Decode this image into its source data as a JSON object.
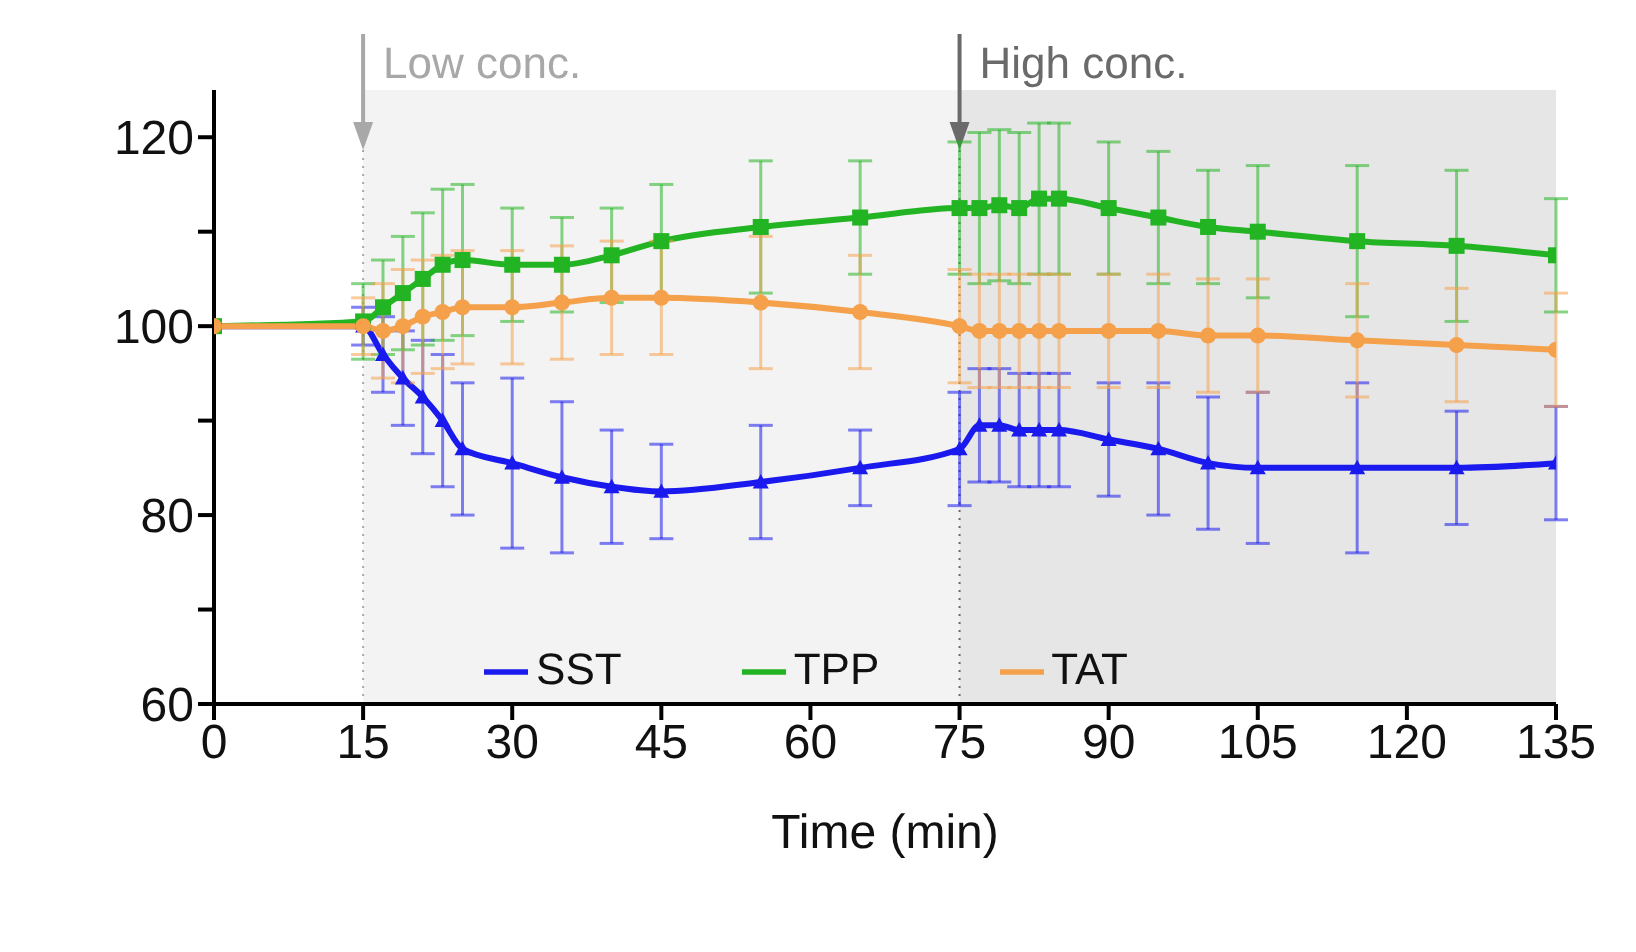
{
  "chart_data": {
    "type": "line",
    "xlabel": "Time (min)",
    "x": [
      0,
      15,
      17,
      19,
      21,
      23,
      25,
      30,
      35,
      40,
      45,
      55,
      65,
      75,
      77,
      79,
      81,
      83,
      85,
      90,
      95,
      100,
      105,
      115,
      125,
      135
    ],
    "series": [
      {
        "name": "SST",
        "color": "#1a1aee",
        "marker": "triangle",
        "values": [
          100,
          100,
          97,
          94.5,
          92.5,
          90,
          87,
          85.5,
          84,
          83,
          82.5,
          83.5,
          85,
          87,
          89.5,
          89.5,
          89,
          89,
          89,
          88,
          87,
          85.5,
          85,
          85,
          85,
          85.5
        ],
        "errors": [
          null,
          2,
          4,
          5,
          6,
          7,
          7,
          9,
          8,
          6,
          5,
          6,
          4,
          6,
          6,
          6,
          6,
          6,
          6,
          6,
          7,
          7,
          8,
          9,
          6,
          6
        ]
      },
      {
        "name": "TPP",
        "color": "#22b422",
        "marker": "square",
        "values": [
          100,
          100.5,
          102,
          103.5,
          105,
          106.5,
          107,
          106.5,
          106.5,
          107.5,
          109,
          110.5,
          111.5,
          112.5,
          112.5,
          112.8,
          112.5,
          113.5,
          113.5,
          112.5,
          111.5,
          110.5,
          110,
          109,
          108.5,
          107.5
        ],
        "errors": [
          null,
          4,
          5,
          6,
          7,
          8,
          8,
          6,
          5,
          5,
          6,
          7,
          6,
          7,
          8,
          8,
          8,
          8,
          8,
          7,
          7,
          6,
          7,
          8,
          8,
          6
        ]
      },
      {
        "name": "TAT",
        "color": "#f5a04a",
        "marker": "circle",
        "values": [
          100,
          100,
          99.5,
          100,
          101,
          101.5,
          102,
          102,
          102.5,
          103,
          103,
          102.5,
          101.5,
          100,
          99.5,
          99.5,
          99.5,
          99.5,
          99.5,
          99.5,
          99.5,
          99,
          99,
          98.5,
          98,
          97.5
        ],
        "errors": [
          null,
          3,
          5,
          6,
          6,
          6,
          6,
          6,
          6,
          6,
          6,
          7,
          6,
          6,
          6,
          6,
          6,
          6,
          6,
          6,
          6,
          6,
          6,
          6,
          6,
          6
        ]
      }
    ],
    "xlim": [
      0,
      135
    ],
    "xticks": [
      0,
      15,
      30,
      45,
      60,
      75,
      90,
      105,
      120,
      135
    ],
    "ylim": [
      60,
      125
    ],
    "yticks": [
      60,
      {
        "value": 70,
        "label": null
      },
      80,
      {
        "value": 90,
        "label": null
      },
      100,
      {
        "value": 110,
        "label": null
      },
      120
    ],
    "bands": [
      {
        "axis": "x",
        "from": 15,
        "to": 75,
        "color": "#f3f3f3"
      },
      {
        "axis": "x",
        "from": 75,
        "to": 135,
        "color": "#e6e6e6"
      }
    ],
    "ref_lines": [
      {
        "axis": "x",
        "value": 15,
        "label": "Low conc.",
        "color": "#a8a8a8",
        "line_style": "dotted"
      },
      {
        "axis": "x",
        "value": 75,
        "label": "High conc.",
        "color": "#6a6a6a",
        "line_style": "dotted"
      }
    ],
    "legend": "bottom",
    "grid": false
  }
}
